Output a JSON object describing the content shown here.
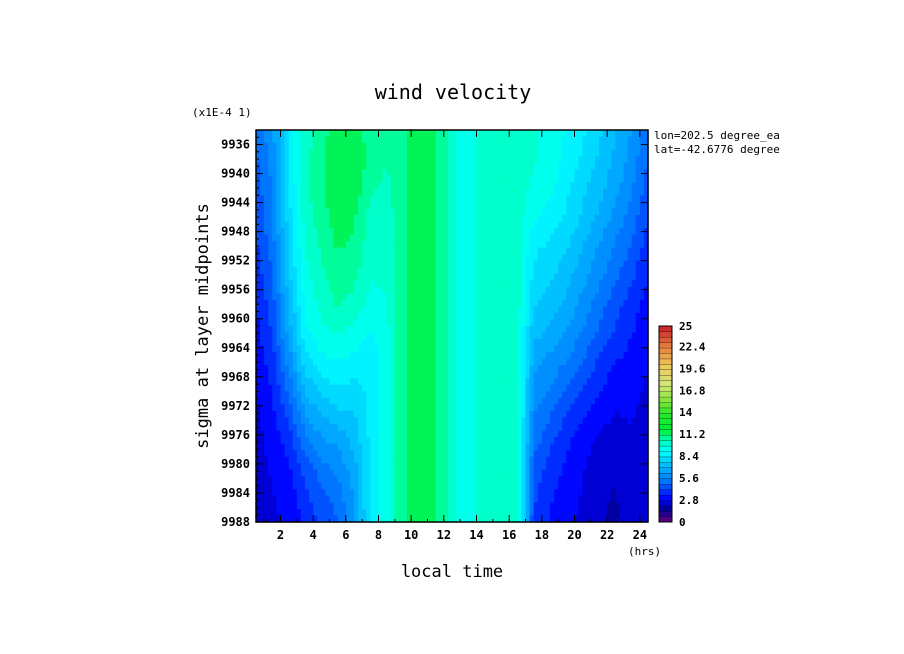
{
  "chart_data": {
    "type": "heatmap",
    "title": "wind velocity",
    "xlabel": "local time",
    "ylabel": "sigma at layer midpoints",
    "x_unit": "(hrs)",
    "y_scale_label": "(x1E-4 1)",
    "annotations": [
      "lon=202.5 degree_ea",
      "lat=-42.6776 degree"
    ],
    "xlim": [
      0.5,
      24.5
    ],
    "ylim": [
      9988,
      9934
    ],
    "x_ticks": [
      "2",
      "4",
      "6",
      "8",
      "10",
      "12",
      "14",
      "16",
      "18",
      "20",
      "22",
      "24"
    ],
    "y_ticks": [
      "9936",
      "9940",
      "9944",
      "9948",
      "9952",
      "9956",
      "9960",
      "9964",
      "9968",
      "9972",
      "9976",
      "9980",
      "9984",
      "9988"
    ],
    "colorbar": {
      "min": 0,
      "max": 25,
      "tick_labels": [
        "25",
        "22.4",
        "19.6",
        "16.8",
        "14",
        "11.2",
        "8.4",
        "5.6",
        "2.8",
        "0"
      ]
    },
    "x": [
      0.5,
      1.5,
      2.5,
      3.5,
      4.5,
      5.5,
      6.5,
      7.5,
      8.5,
      9.5,
      10.5,
      11.5,
      12.5,
      13.5,
      14.5,
      15.5,
      16.5,
      17.5,
      18.5,
      19.5,
      20.5,
      21.5,
      22.5,
      23.5,
      24.5
    ],
    "y": [
      9934,
      9938,
      9942,
      9946,
      9950,
      9954,
      9958,
      9962,
      9966,
      9970,
      9974,
      9978,
      9982,
      9986,
      9988
    ],
    "z": [
      [
        5.0,
        6.0,
        8.5,
        10.0,
        10.8,
        11.5,
        11.4,
        10.8,
        10.5,
        11.0,
        11.5,
        11.2,
        10.0,
        9.0,
        10.2,
        10.0,
        10.0,
        9.8,
        9.5,
        9.0,
        8.5,
        7.8,
        7.0,
        6.2,
        5.0
      ],
      [
        4.8,
        5.8,
        8.5,
        10.2,
        11.0,
        11.8,
        11.6,
        11.0,
        10.5,
        11.0,
        11.5,
        11.2,
        10.0,
        9.0,
        10.2,
        10.0,
        10.0,
        9.8,
        9.5,
        8.8,
        8.2,
        7.5,
        6.8,
        6.0,
        4.8
      ],
      [
        4.5,
        5.6,
        8.3,
        10.2,
        11.0,
        11.8,
        11.6,
        10.5,
        10.2,
        11.0,
        11.5,
        11.2,
        10.0,
        9.0,
        10.2,
        10.0,
        10.0,
        9.6,
        9.2,
        8.5,
        7.8,
        7.2,
        6.5,
        5.6,
        4.5
      ],
      [
        4.3,
        5.4,
        8.0,
        10.0,
        10.8,
        11.5,
        11.2,
        10.2,
        10.0,
        11.0,
        11.5,
        11.2,
        10.0,
        9.0,
        10.2,
        10.0,
        10.0,
        9.2,
        8.8,
        8.2,
        7.5,
        6.8,
        6.0,
        5.2,
        4.2
      ],
      [
        4.0,
        5.2,
        7.8,
        9.8,
        10.5,
        11.2,
        11.0,
        10.0,
        9.8,
        11.0,
        11.5,
        11.2,
        10.0,
        9.0,
        10.2,
        10.0,
        10.0,
        8.5,
        8.2,
        7.8,
        7.0,
        6.2,
        5.5,
        4.8,
        3.8
      ],
      [
        3.8,
        4.8,
        7.5,
        9.5,
        10.3,
        10.8,
        10.6,
        9.8,
        9.8,
        11.0,
        11.5,
        11.2,
        10.0,
        9.0,
        10.2,
        10.0,
        10.0,
        8.2,
        7.8,
        7.2,
        6.5,
        5.8,
        5.0,
        4.3,
        3.5
      ],
      [
        3.5,
        4.5,
        7.0,
        9.2,
        10.0,
        10.5,
        10.2,
        9.5,
        9.7,
        11.0,
        11.5,
        11.2,
        10.0,
        9.0,
        10.2,
        10.0,
        10.0,
        7.8,
        7.2,
        6.8,
        6.0,
        5.2,
        4.5,
        3.8,
        3.2
      ],
      [
        3.2,
        4.2,
        6.5,
        8.8,
        9.5,
        9.8,
        9.5,
        9.0,
        9.5,
        11.0,
        11.5,
        11.2,
        10.0,
        9.0,
        10.2,
        10.0,
        10.0,
        7.2,
        6.8,
        6.2,
        5.5,
        4.8,
        4.0,
        3.5,
        3.0
      ],
      [
        3.0,
        3.8,
        5.8,
        8.0,
        8.8,
        9.0,
        8.8,
        8.5,
        9.5,
        11.0,
        11.5,
        11.2,
        10.0,
        9.0,
        10.2,
        10.0,
        10.0,
        6.5,
        6.0,
        5.5,
        4.8,
        4.0,
        3.5,
        3.2,
        2.8
      ],
      [
        2.8,
        3.5,
        5.0,
        7.0,
        7.8,
        8.2,
        8.0,
        8.5,
        9.5,
        11.0,
        11.5,
        11.2,
        10.0,
        9.0,
        10.2,
        10.0,
        10.0,
        6.0,
        5.5,
        4.8,
        4.0,
        3.5,
        3.0,
        2.9,
        2.7
      ],
      [
        2.6,
        3.2,
        4.2,
        6.0,
        6.8,
        7.2,
        7.5,
        8.5,
        9.5,
        11.0,
        11.5,
        11.2,
        10.0,
        9.0,
        10.2,
        10.0,
        10.0,
        5.5,
        4.8,
        4.0,
        3.5,
        3.0,
        2.7,
        2.8,
        2.6
      ],
      [
        2.5,
        3.0,
        3.6,
        5.0,
        5.8,
        6.2,
        7.0,
        8.5,
        9.5,
        11.0,
        11.5,
        11.2,
        10.0,
        9.0,
        10.2,
        10.0,
        10.0,
        5.0,
        4.2,
        3.5,
        3.0,
        2.5,
        2.2,
        2.8,
        2.5
      ],
      [
        2.4,
        2.8,
        3.2,
        4.2,
        5.0,
        5.5,
        6.5,
        8.5,
        9.5,
        11.0,
        11.5,
        11.2,
        10.0,
        9.0,
        10.2,
        10.0,
        10.0,
        4.5,
        3.8,
        3.2,
        2.8,
        2.3,
        2.1,
        2.7,
        2.4
      ],
      [
        2.3,
        2.7,
        3.0,
        3.8,
        4.5,
        5.0,
        6.2,
        8.5,
        9.5,
        11.0,
        11.5,
        11.2,
        10.0,
        9.0,
        10.2,
        10.0,
        10.0,
        4.2,
        3.5,
        3.0,
        2.7,
        2.2,
        2.0,
        2.6,
        2.3
      ],
      [
        2.3,
        2.6,
        2.9,
        3.6,
        4.3,
        4.8,
        6.0,
        8.5,
        9.5,
        11.0,
        11.5,
        11.2,
        10.0,
        9.0,
        10.2,
        10.0,
        10.0,
        4.0,
        3.4,
        2.9,
        2.6,
        2.2,
        2.0,
        2.6,
        2.3
      ]
    ]
  }
}
